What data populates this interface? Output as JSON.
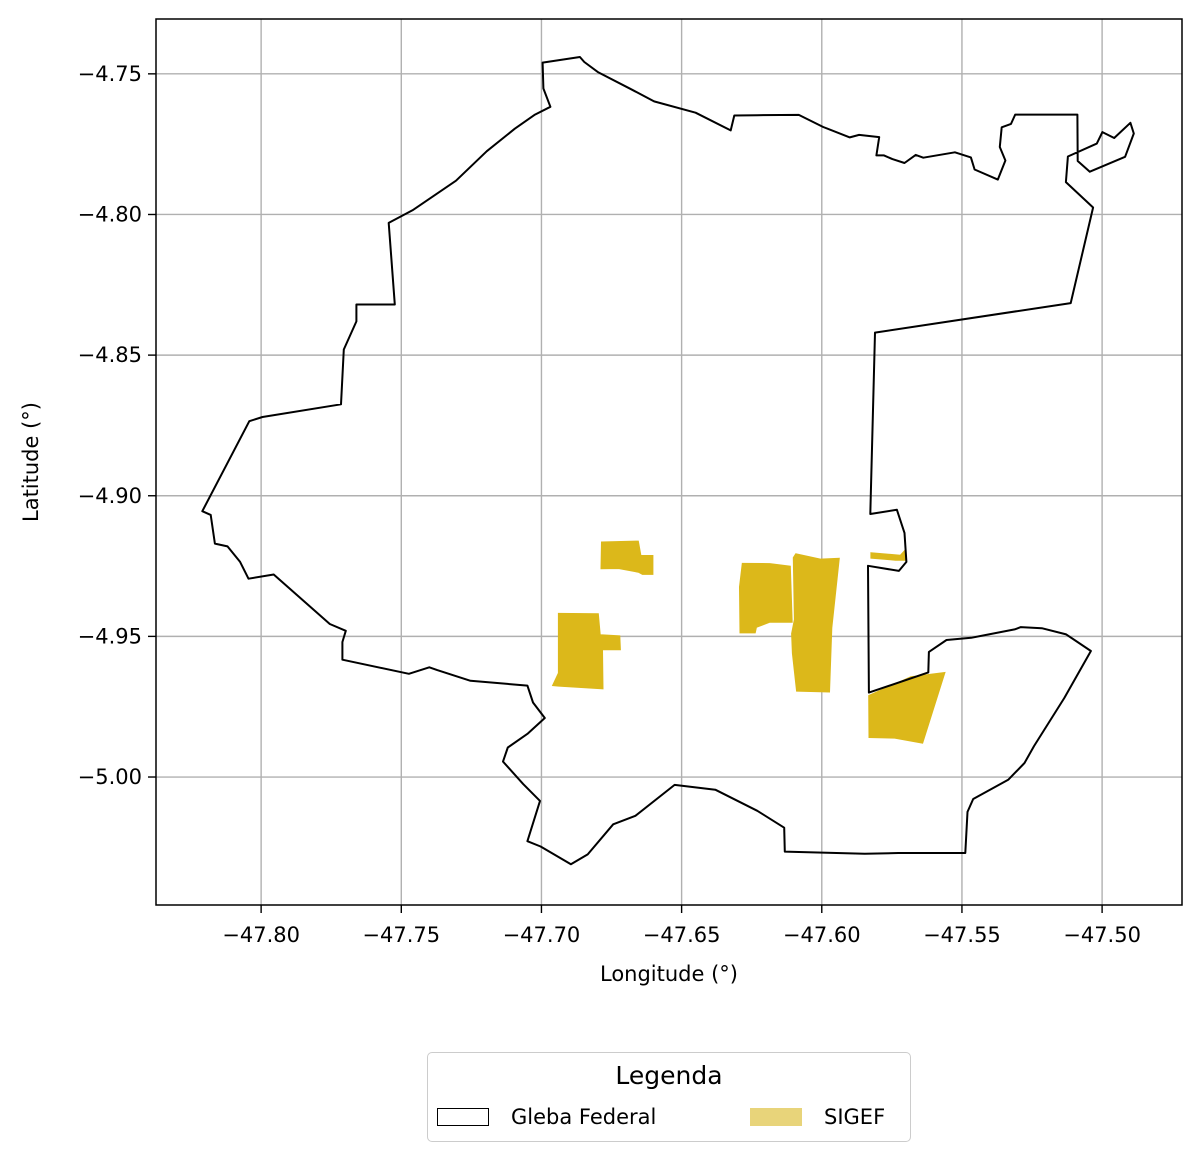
{
  "chart_data": {
    "type": "map",
    "xlabel": "Longitude (°)",
    "ylabel": "Latitude (°)",
    "xlim": [
      -47.8375,
      -47.4715
    ],
    "ylim": [
      -5.0455,
      -4.7305
    ],
    "x_ticks": [
      -47.8,
      -47.75,
      -47.7,
      -47.65,
      -47.6,
      -47.55,
      -47.5
    ],
    "x_tick_labels": [
      "−47.80",
      "−47.75",
      "−47.70",
      "−47.65",
      "−47.60",
      "−47.55",
      "−47.50"
    ],
    "y_ticks": [
      -4.75,
      -4.8,
      -4.85,
      -4.9,
      -4.95,
      -5.0
    ],
    "y_tick_labels": [
      "−4.75",
      "−4.80",
      "−4.85",
      "−4.90",
      "−4.95",
      "−5.00"
    ],
    "grid": true,
    "colors": {
      "boundary": "#000000",
      "sigef": "#dcb81a",
      "sigef_legend": "#e8d47a",
      "grid": "#b0b0b0"
    },
    "boundary": [
      [
        -47.6996,
        -4.746
      ],
      [
        -47.6863,
        -4.744
      ],
      [
        -47.6847,
        -4.7458
      ],
      [
        -47.6797,
        -4.7495
      ],
      [
        -47.6683,
        -4.7553
      ],
      [
        -47.6598,
        -4.7598
      ],
      [
        -47.645,
        -4.7638
      ],
      [
        -47.6325,
        -4.7701
      ],
      [
        -47.6312,
        -4.7648
      ],
      [
        -47.623,
        -4.7647
      ],
      [
        -47.6082,
        -4.7646
      ],
      [
        -47.5995,
        -4.7689
      ],
      [
        -47.59,
        -4.7726
      ],
      [
        -47.5867,
        -4.7717
      ],
      [
        -47.5795,
        -4.7725
      ],
      [
        -47.5805,
        -4.779
      ],
      [
        -47.5778,
        -4.779
      ],
      [
        -47.5748,
        -4.7803
      ],
      [
        -47.5705,
        -4.7817
      ],
      [
        -47.5665,
        -4.7788
      ],
      [
        -47.5638,
        -4.7798
      ],
      [
        -47.5525,
        -4.7779
      ],
      [
        -47.5468,
        -4.7797
      ],
      [
        -47.5455,
        -4.784
      ],
      [
        -47.5372,
        -4.7876
      ],
      [
        -47.5345,
        -4.7808
      ],
      [
        -47.5365,
        -4.776
      ],
      [
        -47.5358,
        -4.769
      ],
      [
        -47.5325,
        -4.7678
      ],
      [
        -47.531,
        -4.7645
      ],
      [
        -47.5088,
        -4.7645
      ],
      [
        -47.5087,
        -4.781
      ],
      [
        -47.5044,
        -4.7848
      ],
      [
        -47.4918,
        -4.7795
      ],
      [
        -47.4887,
        -4.7712
      ],
      [
        -47.4899,
        -4.7674
      ],
      [
        -47.4957,
        -4.7728
      ],
      [
        -47.4999,
        -4.7707
      ],
      [
        -47.5019,
        -4.7748
      ],
      [
        -47.5122,
        -4.7794
      ],
      [
        -47.5129,
        -4.7885
      ],
      [
        -47.5032,
        -4.7975
      ],
      [
        -47.5112,
        -4.8315
      ],
      [
        -47.581,
        -4.842
      ],
      [
        -47.5827,
        -4.9065
      ],
      [
        -47.5732,
        -4.905
      ],
      [
        -47.5705,
        -4.9132
      ],
      [
        -47.5698,
        -4.9235
      ],
      [
        -47.5725,
        -4.9267
      ],
      [
        -47.5835,
        -4.9249
      ],
      [
        -47.5832,
        -4.97
      ],
      [
        -47.562,
        -4.9628
      ],
      [
        -47.5618,
        -4.9555
      ],
      [
        -47.5555,
        -4.9513
      ],
      [
        -47.5467,
        -4.9505
      ],
      [
        -47.5312,
        -4.9475
      ],
      [
        -47.529,
        -4.9467
      ],
      [
        -47.5215,
        -4.9471
      ],
      [
        -47.5128,
        -4.9493
      ],
      [
        -47.504,
        -4.9552
      ],
      [
        -47.5135,
        -4.9719
      ],
      [
        -47.5243,
        -4.989
      ],
      [
        -47.5277,
        -4.995
      ],
      [
        -47.5335,
        -5.001
      ],
      [
        -47.546,
        -5.0078
      ],
      [
        -47.548,
        -5.0124
      ],
      [
        -47.5488,
        -5.027
      ],
      [
        -47.5727,
        -5.027
      ],
      [
        -47.5847,
        -5.0273
      ],
      [
        -47.6132,
        -5.0265
      ],
      [
        -47.6134,
        -5.018
      ],
      [
        -47.623,
        -5.012
      ],
      [
        -47.638,
        -5.0045
      ],
      [
        -47.6525,
        -5.0028
      ],
      [
        -47.6665,
        -5.0138
      ],
      [
        -47.6744,
        -5.0168
      ],
      [
        -47.6835,
        -5.0275
      ],
      [
        -47.6895,
        -5.031
      ],
      [
        -47.7003,
        -5.0247
      ],
      [
        -47.705,
        -5.0228
      ],
      [
        -47.7005,
        -5.0085
      ],
      [
        -47.7065,
        -5.0025
      ],
      [
        -47.7137,
        -4.9945
      ],
      [
        -47.712,
        -4.9895
      ],
      [
        -47.7048,
        -4.9845
      ],
      [
        -47.6988,
        -4.979
      ],
      [
        -47.703,
        -4.9735
      ],
      [
        -47.705,
        -4.9675
      ],
      [
        -47.7253,
        -4.9658
      ],
      [
        -47.7372,
        -4.962
      ],
      [
        -47.74,
        -4.961
      ],
      [
        -47.7473,
        -4.9633
      ],
      [
        -47.771,
        -4.9583
      ],
      [
        -47.771,
        -4.952
      ],
      [
        -47.7698,
        -4.948
      ],
      [
        -47.7755,
        -4.9456
      ],
      [
        -47.7955,
        -4.928
      ],
      [
        -47.8045,
        -4.9295
      ],
      [
        -47.8075,
        -4.9235
      ],
      [
        -47.812,
        -4.918
      ],
      [
        -47.8165,
        -4.917
      ],
      [
        -47.818,
        -4.9068
      ],
      [
        -47.821,
        -4.9055
      ],
      [
        -47.8042,
        -4.8735
      ],
      [
        -47.7995,
        -4.872
      ],
      [
        -47.7715,
        -4.8675
      ],
      [
        -47.7705,
        -4.848
      ],
      [
        -47.766,
        -4.838
      ],
      [
        -47.766,
        -4.832
      ],
      [
        -47.7523,
        -4.832
      ],
      [
        -47.7545,
        -4.803
      ],
      [
        -47.746,
        -4.7985
      ],
      [
        -47.7305,
        -4.788
      ],
      [
        -47.7195,
        -4.7775
      ],
      [
        -47.7095,
        -4.7695
      ],
      [
        -47.7023,
        -4.7645
      ],
      [
        -47.6968,
        -4.7617
      ],
      [
        -47.6993,
        -4.7552
      ],
      [
        -47.6996,
        -4.746
      ]
    ],
    "sigef_parcels": [
      [
        [
          -47.6786,
          -4.9164
        ],
        [
          -47.6654,
          -4.9161
        ],
        [
          -47.6645,
          -4.9212
        ],
        [
          -47.6602,
          -4.9212
        ],
        [
          -47.6602,
          -4.928
        ],
        [
          -47.664,
          -4.928
        ],
        [
          -47.6654,
          -4.9272
        ],
        [
          -47.6725,
          -4.9259
        ],
        [
          -47.6788,
          -4.926
        ]
      ],
      [
        [
          -47.694,
          -4.9418
        ],
        [
          -47.6797,
          -4.9419
        ],
        [
          -47.679,
          -4.9494
        ],
        [
          -47.672,
          -4.9498
        ],
        [
          -47.6718,
          -4.9548
        ],
        [
          -47.6782,
          -4.9548
        ],
        [
          -47.678,
          -4.9687
        ],
        [
          -47.6938,
          -4.9677
        ],
        [
          -47.6961,
          -4.9675
        ],
        [
          -47.694,
          -4.963
        ]
      ],
      [
        [
          -47.6284,
          -4.924
        ],
        [
          -47.6294,
          -4.9324
        ],
        [
          -47.6292,
          -4.9488
        ],
        [
          -47.6237,
          -4.9488
        ],
        [
          -47.6233,
          -4.9468
        ],
        [
          -47.6185,
          -4.945
        ],
        [
          -47.6105,
          -4.945
        ],
        [
          -47.6112,
          -4.925
        ],
        [
          -47.6185,
          -4.9241
        ]
      ],
      [
        [
          -47.6093,
          -4.9206
        ],
        [
          -47.6005,
          -4.9225
        ],
        [
          -47.5937,
          -4.9222
        ],
        [
          -47.5964,
          -4.947
        ],
        [
          -47.5972,
          -4.9698
        ],
        [
          -47.609,
          -4.9695
        ],
        [
          -47.6105,
          -4.956
        ],
        [
          -47.6108,
          -4.949
        ],
        [
          -47.6098,
          -4.944
        ],
        [
          -47.6102,
          -4.922
        ]
      ],
      [
        [
          -47.5833,
          -4.971
        ],
        [
          -47.5682,
          -4.9643
        ],
        [
          -47.556,
          -4.9628
        ],
        [
          -47.564,
          -4.988
        ],
        [
          -47.574,
          -4.9862
        ],
        [
          -47.5832,
          -4.986
        ]
      ],
      [
        [
          -47.5825,
          -4.9202
        ],
        [
          -47.572,
          -4.9211
        ],
        [
          -47.5703,
          -4.9193
        ],
        [
          -47.5698,
          -4.923
        ],
        [
          -47.5737,
          -4.923
        ],
        [
          -47.5776,
          -4.9226
        ],
        [
          -47.5825,
          -4.9222
        ]
      ]
    ]
  },
  "legend": {
    "title": "Legenda",
    "items": [
      "Gleba Federal",
      "SIGEF"
    ]
  }
}
